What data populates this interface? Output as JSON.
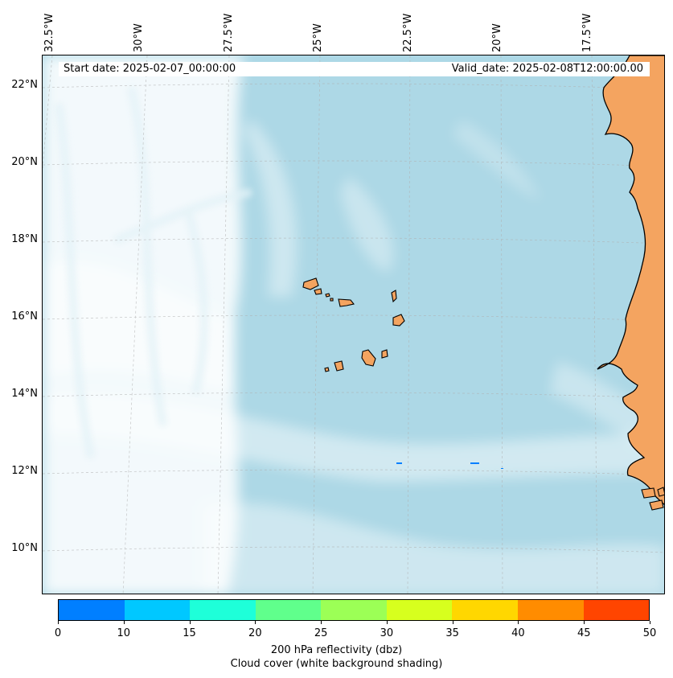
{
  "map": {
    "info": {
      "start_date": "Start date: 2025-02-07_00:00:00",
      "valid_date": "Valid_date: 2025-02-08T12:00:00.00"
    },
    "longitude_labels": [
      "32.5°W",
      "30°W",
      "27.5°W",
      "25°W",
      "22.5°W",
      "20°W",
      "17.5°W"
    ],
    "latitude_labels": [
      "22°N",
      "20°N",
      "18°N",
      "16°N",
      "14°N",
      "12°N",
      "10°N"
    ],
    "colors": {
      "ocean_cloud_background": "#add8e6",
      "cloud_shading": "#ffffff",
      "land": "#f4a460",
      "coastline": "#000000",
      "gridline": "#b0b0b0"
    }
  },
  "colorbar": {
    "ticks": [
      "0",
      "10",
      "15",
      "20",
      "25",
      "30",
      "35",
      "40",
      "45",
      "50"
    ],
    "colors": [
      "#007fff",
      "#00c8ff",
      "#1effd9",
      "#60ff8c",
      "#9cff56",
      "#d7ff1e",
      "#ffd700",
      "#ff8c00",
      "#ff4500"
    ],
    "label_line1": "200 hPa reflectivity (dbz)",
    "label_line2": "Cloud cover (white background shading)"
  }
}
